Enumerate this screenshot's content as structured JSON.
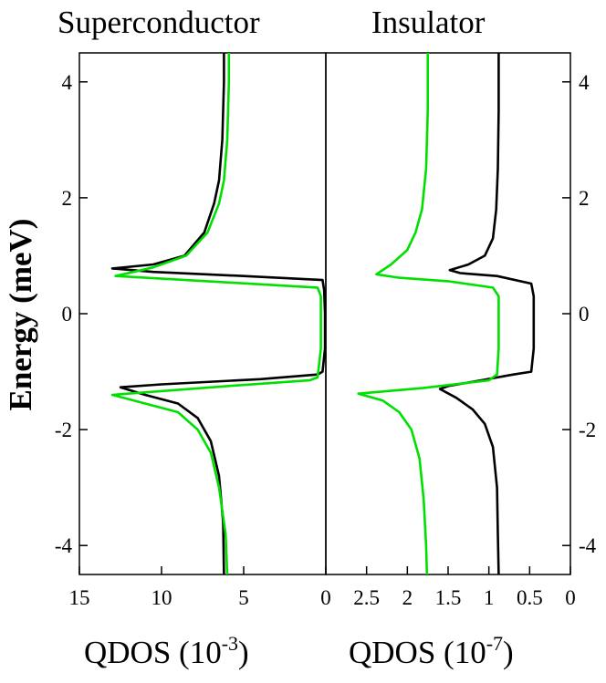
{
  "chart_data": [
    {
      "type": "line",
      "title": "Superconductor",
      "xlabel": "QDOS (10",
      "xlabel_exponent": "-3",
      "xlabel_suffix": ")",
      "ylabel": "Energy (meV)",
      "xlim": [
        15,
        0
      ],
      "ylim": [
        -4.5,
        4.5
      ],
      "x_ticks": [
        15,
        10,
        5,
        0
      ],
      "x_tick_labels": [
        "15",
        "10",
        "5",
        "0"
      ],
      "y_ticks": [
        4,
        2,
        0,
        -2,
        -4
      ],
      "y_tick_labels": [
        "4",
        "2",
        "0",
        "-2",
        "-4"
      ],
      "grid": false,
      "series": [
        {
          "color": "#000000",
          "points": [
            [
              6.2,
              4.5
            ],
            [
              6.2,
              4.0
            ],
            [
              6.3,
              3.0
            ],
            [
              6.5,
              2.3
            ],
            [
              6.8,
              1.9
            ],
            [
              7.4,
              1.4
            ],
            [
              8.6,
              1.0
            ],
            [
              10.5,
              0.85
            ],
            [
              13.0,
              0.78
            ],
            [
              10.5,
              0.72
            ],
            [
              5.0,
              0.65
            ],
            [
              0.2,
              0.58
            ],
            [
              0.1,
              0.4
            ],
            [
              0.05,
              0.0
            ],
            [
              0.05,
              -0.6
            ],
            [
              0.2,
              -1.0
            ],
            [
              0.5,
              -1.05
            ],
            [
              4.0,
              -1.13
            ],
            [
              10.0,
              -1.22
            ],
            [
              12.5,
              -1.27
            ],
            [
              11.0,
              -1.4
            ],
            [
              9.0,
              -1.55
            ],
            [
              7.8,
              -1.8
            ],
            [
              7.0,
              -2.2
            ],
            [
              6.5,
              -2.8
            ],
            [
              6.25,
              -3.6
            ],
            [
              6.2,
              -4.5
            ]
          ]
        },
        {
          "color": "#00e000",
          "points": [
            [
              5.9,
              4.5
            ],
            [
              5.9,
              4.0
            ],
            [
              6.0,
              3.0
            ],
            [
              6.2,
              2.3
            ],
            [
              6.5,
              1.9
            ],
            [
              7.2,
              1.4
            ],
            [
              8.5,
              1.0
            ],
            [
              10.5,
              0.8
            ],
            [
              12.8,
              0.65
            ],
            [
              6.0,
              0.54
            ],
            [
              0.5,
              0.45
            ],
            [
              0.3,
              0.3
            ],
            [
              0.3,
              -0.6
            ],
            [
              0.5,
              -1.1
            ],
            [
              1.0,
              -1.15
            ],
            [
              6.0,
              -1.25
            ],
            [
              13.0,
              -1.4
            ],
            [
              11.0,
              -1.55
            ],
            [
              9.0,
              -1.7
            ],
            [
              7.8,
              -2.0
            ],
            [
              7.0,
              -2.4
            ],
            [
              6.5,
              -3.0
            ],
            [
              6.1,
              -3.8
            ],
            [
              6.0,
              -4.5
            ]
          ]
        }
      ]
    },
    {
      "type": "line",
      "title": "Insulator",
      "xlabel": "QDOS (10",
      "xlabel_exponent": "-7",
      "xlabel_suffix": ")",
      "xlim": [
        3,
        0
      ],
      "ylim": [
        -4.5,
        4.5
      ],
      "x_ticks": [
        2.5,
        2,
        1.5,
        1,
        0.5,
        0
      ],
      "x_tick_labels": [
        "2.5",
        "2",
        "1.5",
        "1",
        "0.5",
        "0"
      ],
      "y_ticks": [
        4,
        2,
        0,
        -2,
        -4
      ],
      "y_tick_labels": [
        "4",
        "2",
        "0",
        "-2",
        "-4"
      ],
      "grid": false,
      "series": [
        {
          "color": "#000000",
          "points": [
            [
              0.88,
              4.5
            ],
            [
              0.88,
              3.5
            ],
            [
              0.89,
              2.5
            ],
            [
              0.91,
              1.8
            ],
            [
              0.95,
              1.3
            ],
            [
              1.05,
              1.0
            ],
            [
              1.25,
              0.85
            ],
            [
              1.48,
              0.75
            ],
            [
              1.35,
              0.7
            ],
            [
              0.9,
              0.65
            ],
            [
              0.48,
              0.52
            ],
            [
              0.45,
              0.3
            ],
            [
              0.45,
              -0.6
            ],
            [
              0.48,
              -1.0
            ],
            [
              0.7,
              -1.05
            ],
            [
              1.1,
              -1.15
            ],
            [
              1.5,
              -1.25
            ],
            [
              1.6,
              -1.3
            ],
            [
              1.4,
              -1.45
            ],
            [
              1.2,
              -1.65
            ],
            [
              1.05,
              -1.9
            ],
            [
              0.95,
              -2.3
            ],
            [
              0.9,
              -3.0
            ],
            [
              0.89,
              -3.8
            ],
            [
              0.88,
              -4.5
            ]
          ]
        },
        {
          "color": "#00e000",
          "points": [
            [
              1.75,
              4.5
            ],
            [
              1.75,
              3.5
            ],
            [
              1.77,
              2.5
            ],
            [
              1.82,
              1.8
            ],
            [
              1.9,
              1.4
            ],
            [
              2.0,
              1.1
            ],
            [
              2.2,
              0.85
            ],
            [
              2.38,
              0.68
            ],
            [
              2.1,
              0.62
            ],
            [
              1.5,
              0.56
            ],
            [
              0.95,
              0.45
            ],
            [
              0.88,
              0.3
            ],
            [
              0.88,
              -0.6
            ],
            [
              0.9,
              -1.05
            ],
            [
              1.0,
              -1.15
            ],
            [
              1.8,
              -1.28
            ],
            [
              2.6,
              -1.38
            ],
            [
              2.3,
              -1.5
            ],
            [
              2.1,
              -1.7
            ],
            [
              1.95,
              -2.0
            ],
            [
              1.85,
              -2.5
            ],
            [
              1.8,
              -3.2
            ],
            [
              1.77,
              -4.0
            ],
            [
              1.76,
              -4.5
            ]
          ]
        }
      ]
    }
  ]
}
